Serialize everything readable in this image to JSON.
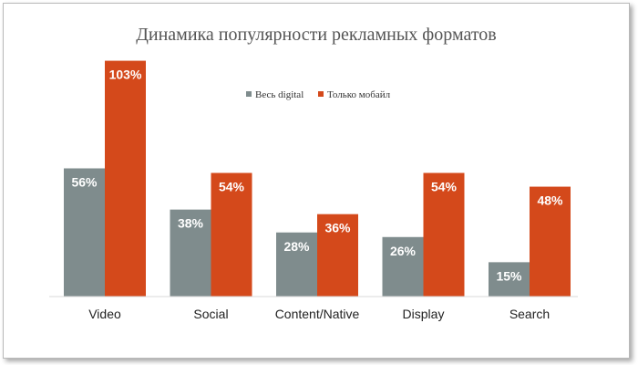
{
  "chart_data": {
    "type": "bar",
    "title": "Динамика популярности рекламных форматов",
    "categories": [
      "Video",
      "Social",
      "Content/Native",
      "Display",
      "Search"
    ],
    "series": [
      {
        "name": "Весь digital",
        "values": [
          56,
          38,
          28,
          26,
          15
        ],
        "labels": [
          "56%",
          "38%",
          "28%",
          "26%",
          "15%"
        ],
        "color": "#7f8c8d"
      },
      {
        "name": "Только мобайл",
        "values": [
          103,
          54,
          36,
          54,
          48
        ],
        "labels": [
          "103%",
          "54%",
          "36%",
          "54%",
          "48%"
        ],
        "color": "#d4491b"
      }
    ],
    "ylim": [
      0,
      112
    ],
    "grid": false,
    "legend": "top-center",
    "xlabel": "",
    "ylabel": ""
  }
}
